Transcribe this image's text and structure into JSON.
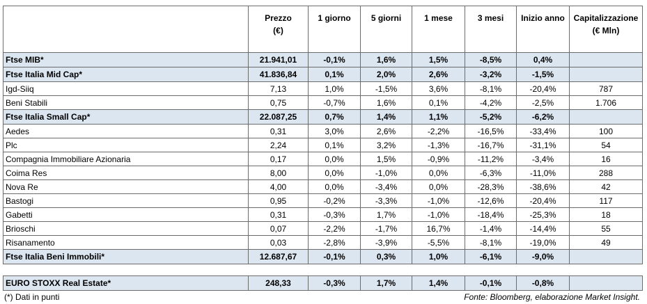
{
  "table": {
    "header": [
      "Prezzo\n(€)",
      "1 giorno",
      "5 giorni",
      "1 mese",
      "3 mesi",
      "Inizio anno",
      "Capitalizzazione\n(€ Mln)"
    ],
    "rows": [
      {
        "highlight": true,
        "cells": [
          "Ftse MIB*",
          "21.941,01",
          "-0,1%",
          "1,6%",
          "1,5%",
          "-8,5%",
          "0,4%"
        ]
      },
      {
        "highlight": true,
        "cells": [
          "Ftse Italia Mid Cap*",
          "41.836,84",
          "0,1%",
          "2,0%",
          "2,6%",
          "-3,2%",
          "-1,5%"
        ]
      },
      {
        "highlight": false,
        "cells": [
          "Igd-Siiq",
          "7,13",
          "1,0%",
          "-1,5%",
          "3,6%",
          "-8,1%",
          "-20,4%",
          "787"
        ]
      },
      {
        "highlight": false,
        "cells": [
          "Beni Stabili",
          "0,75",
          "-0,7%",
          "1,6%",
          "0,1%",
          "-4,2%",
          "-2,5%",
          "1.706"
        ]
      },
      {
        "highlight": true,
        "cells": [
          "Ftse Italia Small Cap*",
          "22.087,25",
          "0,7%",
          "1,4%",
          "1,1%",
          "-5,2%",
          "-6,2%"
        ]
      },
      {
        "highlight": false,
        "cells": [
          "Aedes",
          "0,31",
          "3,0%",
          "2,6%",
          "-2,2%",
          "-16,5%",
          "-33,4%",
          "100"
        ]
      },
      {
        "highlight": false,
        "cells": [
          "Plc",
          "2,24",
          "0,1%",
          "3,2%",
          "-1,3%",
          "-16,7%",
          "-31,1%",
          "54"
        ]
      },
      {
        "highlight": false,
        "cells": [
          "Compagnia Immobiliare Azionaria",
          "0,17",
          "0,0%",
          "1,5%",
          "-0,9%",
          "-11,2%",
          "-3,4%",
          "16"
        ]
      },
      {
        "highlight": false,
        "cells": [
          "Coima Res",
          "8,00",
          "0,0%",
          "-1,0%",
          "0,0%",
          "-6,3%",
          "-11,0%",
          "288"
        ]
      },
      {
        "highlight": false,
        "cells": [
          "Nova Re",
          "4,00",
          "0,0%",
          "-3,4%",
          "0,0%",
          "-28,3%",
          "-38,6%",
          "42"
        ]
      },
      {
        "highlight": false,
        "cells": [
          "Bastogi",
          "0,95",
          "-0,2%",
          "-3,3%",
          "-1,0%",
          "-12,6%",
          "-20,4%",
          "117"
        ]
      },
      {
        "highlight": false,
        "cells": [
          "Gabetti",
          "0,31",
          "-0,3%",
          "1,7%",
          "-1,0%",
          "-18,4%",
          "-25,3%",
          "18"
        ]
      },
      {
        "highlight": false,
        "cells": [
          "Brioschi",
          "0,07",
          "-2,2%",
          "-1,7%",
          "16,7%",
          "-1,4%",
          "-14,4%",
          "55"
        ]
      },
      {
        "highlight": false,
        "cells": [
          "Risanamento",
          "0,03",
          "-2,8%",
          "-3,9%",
          "-5,5%",
          "-8,1%",
          "-19,0%",
          "49"
        ]
      },
      {
        "highlight": true,
        "cells": [
          "Ftse Italia Beni Immobili*",
          "12.687,67",
          "-0,1%",
          "0,3%",
          "1,0%",
          "-6,1%",
          "-9,0%"
        ]
      }
    ],
    "summary_row": {
      "highlight": true,
      "cells": [
        "EURO STOXX Real Estate*",
        "248,33",
        "-0,3%",
        "1,7%",
        "1,4%",
        "-0,1%",
        "-0,8%"
      ]
    }
  },
  "notes": {
    "left": "(*) Dati in punti",
    "right": "Fonte: Bloomberg, elaborazione Market Insight."
  }
}
